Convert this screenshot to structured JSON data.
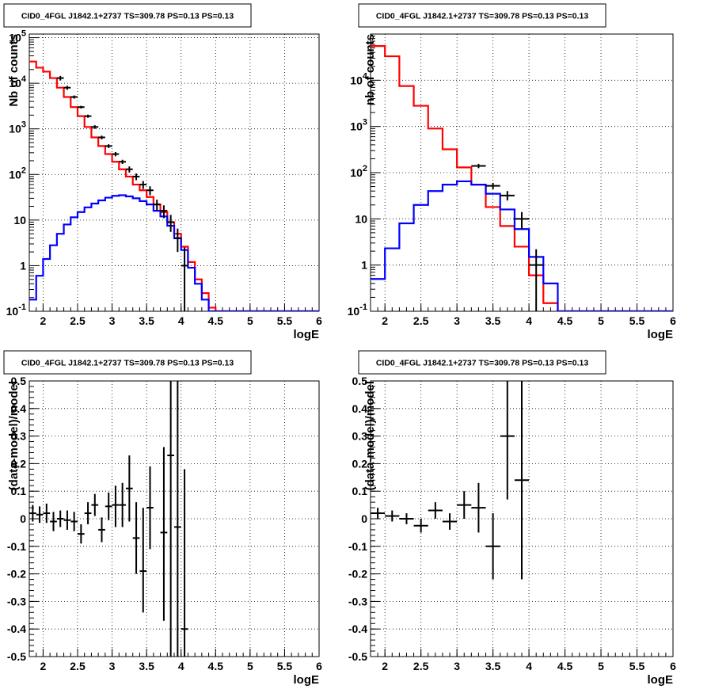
{
  "colors": {
    "data": "#000000",
    "total_model": "#ff0000",
    "source_model": "#0000ff",
    "grid": "#000000",
    "background": "#ffffff"
  },
  "chart_data": [
    {
      "type": "line",
      "panel": "top-left",
      "title": "CID0_4FGL J1842.1+2737 TS=309.78 PS=0.13 PS=0.13",
      "xlabel": "logE",
      "ylabel": "Nb of counts",
      "xlim": [
        1.8,
        6
      ],
      "ylim": [
        0.1,
        120000
      ],
      "yscale": "log",
      "grid": true,
      "xticks": [
        "2",
        "2.5",
        "3",
        "3.5",
        "4",
        "4.5",
        "5",
        "5.5",
        "6"
      ],
      "yticks": [
        "10^-1",
        "1",
        "10",
        "10^2",
        "10^3",
        "10^4",
        "10^5"
      ],
      "series": [
        {
          "kind": "step",
          "color": "red",
          "bin_width": 0.1,
          "x0": 1.8,
          "values": [
            30000,
            22000,
            18000,
            13000,
            8000,
            5000,
            3000,
            1900,
            1100,
            650,
            420,
            280,
            190,
            130,
            90,
            60,
            45,
            32,
            22,
            15,
            9,
            5,
            2.6,
            1.2,
            0.5,
            0.25,
            0.12,
            0.1,
            0.1,
            0.1,
            0.1,
            0.1,
            0.1,
            0.1,
            0.1,
            0.1,
            0.1,
            0.1,
            0.1,
            0.1,
            0.1,
            0.1
          ]
        },
        {
          "kind": "step",
          "color": "blue",
          "bin_width": 0.1,
          "x0": 1.8,
          "values": [
            0.18,
            0.6,
            1.4,
            2.8,
            5,
            8,
            11.5,
            15,
            19,
            23,
            27,
            31,
            34,
            35,
            33,
            30,
            26,
            22,
            16,
            12,
            7.5,
            4,
            2.2,
            0.9,
            0.4,
            0.18,
            0.1,
            0.1,
            0.1,
            0.1,
            0.1,
            0.1,
            0.1,
            0.1,
            0.1,
            0.1,
            0.1,
            0.1,
            0.1,
            0.1,
            0.1,
            0.1
          ]
        },
        {
          "kind": "points",
          "color": "black",
          "x_err": 0.05,
          "x": [
            2.25,
            2.35,
            2.45,
            2.55,
            2.65,
            2.75,
            2.85,
            2.95,
            3.05,
            3.15,
            3.25,
            3.35,
            3.45,
            3.55,
            3.65,
            3.75,
            3.85,
            3.95,
            4.05
          ],
          "y": [
            13000,
            8000,
            5000,
            3000,
            1900,
            1100,
            650,
            420,
            280,
            190,
            130,
            90,
            60,
            45,
            22,
            16,
            9,
            4,
            1
          ],
          "y_lo": [
            11500,
            7200,
            4600,
            2800,
            1750,
            1000,
            590,
            380,
            250,
            170,
            110,
            75,
            48,
            35,
            16,
            11,
            5.5,
            2,
            0.1
          ],
          "y_hi": [
            14500,
            8800,
            5400,
            3200,
            2050,
            1200,
            710,
            460,
            310,
            210,
            150,
            105,
            72,
            55,
            28,
            21,
            13,
            6.5,
            2.5
          ]
        }
      ]
    },
    {
      "type": "line",
      "panel": "top-right",
      "title": "CID0_4FGL J1842.1+2737 TS=309.78 PS=0.13 PS=0.13",
      "xlabel": "logE",
      "ylabel": "nb of counts",
      "xlim": [
        1.8,
        6
      ],
      "ylim": [
        0.1,
        100000
      ],
      "yscale": "log",
      "grid": true,
      "xticks": [
        "2",
        "2.5",
        "3",
        "3.5",
        "4",
        "4.5",
        "5",
        "5.5",
        "6"
      ],
      "yticks": [
        "10^-1",
        "1",
        "10",
        "10^2",
        "10^3",
        "10^4"
      ],
      "series": [
        {
          "kind": "step",
          "color": "red",
          "bin_width": 0.2,
          "x0": 1.8,
          "values": [
            55000,
            33000,
            7500,
            2800,
            900,
            320,
            130,
            55,
            18,
            7,
            2.5,
            0.6,
            0.15,
            0.1,
            0.1,
            0.1,
            0.1,
            0.1,
            0.1,
            0.1,
            0.1
          ]
        },
        {
          "kind": "step",
          "color": "blue",
          "bin_width": 0.2,
          "x0": 1.8,
          "values": [
            0.5,
            2.3,
            8,
            20,
            40,
            55,
            65,
            55,
            35,
            16,
            6,
            1.5,
            0.4,
            0.1,
            0.1,
            0.1,
            0.1,
            0.1,
            0.1,
            0.1,
            0.1
          ]
        },
        {
          "kind": "points",
          "color": "black",
          "x_err": 0.1,
          "x": [
            3.3,
            3.5,
            3.7,
            3.9,
            4.1
          ],
          "y": [
            140,
            52,
            32,
            10,
            1
          ],
          "y_lo": [
            125,
            44,
            25,
            6,
            0.1
          ],
          "y_hi": [
            155,
            60,
            40,
            14,
            2.2
          ]
        }
      ]
    },
    {
      "type": "scatter",
      "panel": "bottom-left",
      "title": "CID0_4FGL J1842.1+2737 TS=309.78 PS=0.13 PS=0.13",
      "xlabel": "logE",
      "ylabel": "(data-model)/model",
      "xlim": [
        1.8,
        6
      ],
      "ylim": [
        -0.5,
        0.5
      ],
      "grid": true,
      "xticks": [
        "2",
        "2.5",
        "3",
        "3.5",
        "4",
        "4.5",
        "5",
        "5.5",
        "6"
      ],
      "yticks": [
        "-0.5",
        "-0.4",
        "-0.3",
        "-0.2",
        "-0.1",
        "0",
        "0.1",
        "0.2",
        "0.3",
        "0.4",
        "0.5"
      ],
      "series": [
        {
          "kind": "points",
          "color": "black",
          "x_err": 0.05,
          "x": [
            1.85,
            1.95,
            2.05,
            2.15,
            2.25,
            2.35,
            2.45,
            2.55,
            2.65,
            2.75,
            2.85,
            2.95,
            3.05,
            3.15,
            3.25,
            3.35,
            3.45,
            3.55,
            3.75,
            3.85,
            3.95,
            4.05
          ],
          "y": [
            0.02,
            0.015,
            0.02,
            -0.01,
            0.0,
            -0.005,
            -0.01,
            -0.055,
            0.02,
            0.05,
            -0.04,
            0.045,
            0.05,
            0.05,
            0.11,
            -0.07,
            -0.19,
            0.04,
            -0.05,
            0.23,
            -0.03,
            -0.4
          ],
          "y_lo": [
            -0.01,
            -0.015,
            -0.015,
            -0.045,
            -0.03,
            -0.04,
            -0.045,
            -0.09,
            -0.02,
            0.01,
            -0.085,
            -0.005,
            -0.03,
            -0.03,
            -0.01,
            -0.2,
            -0.34,
            -0.11,
            -0.37,
            -0.5,
            -0.5,
            -0.5
          ],
          "y_hi": [
            0.05,
            0.045,
            0.055,
            0.025,
            0.03,
            0.03,
            0.025,
            -0.02,
            0.06,
            0.09,
            0.005,
            0.095,
            0.12,
            0.13,
            0.23,
            0.06,
            0.04,
            0.19,
            0.26,
            0.5,
            0.5,
            0.18
          ]
        }
      ]
    },
    {
      "type": "scatter",
      "panel": "bottom-right",
      "title": "CID0_4FGL J1842.1+2737 TS=309.78 PS=0.13 PS=0.13",
      "xlabel": "logE",
      "ylabel": "(data-model)/model",
      "xlim": [
        1.8,
        6
      ],
      "ylim": [
        -0.5,
        0.5
      ],
      "grid": true,
      "xticks": [
        "2",
        "2.5",
        "3",
        "3.5",
        "4",
        "4.5",
        "5",
        "5.5",
        "6"
      ],
      "yticks": [
        "-0.5",
        "-0.4",
        "-0.3",
        "-0.2",
        "-0.1",
        "0",
        "0.1",
        "0.2",
        "0.3",
        "0.4",
        "0.5"
      ],
      "series": [
        {
          "kind": "points",
          "color": "black",
          "x_err": 0.1,
          "x": [
            1.9,
            2.1,
            2.3,
            2.5,
            2.7,
            2.9,
            3.1,
            3.3,
            3.5,
            3.7,
            3.9
          ],
          "y": [
            0.02,
            0.01,
            0.0,
            -0.025,
            0.03,
            -0.01,
            0.05,
            0.04,
            -0.1,
            0.3,
            0.14
          ],
          "y_lo": [
            0.0,
            -0.01,
            -0.02,
            -0.05,
            0.0,
            -0.04,
            0.0,
            -0.05,
            -0.22,
            0.07,
            -0.22
          ],
          "y_hi": [
            0.04,
            0.03,
            0.02,
            0.0,
            0.06,
            0.02,
            0.1,
            0.13,
            0.02,
            0.5,
            0.5
          ]
        }
      ]
    }
  ]
}
